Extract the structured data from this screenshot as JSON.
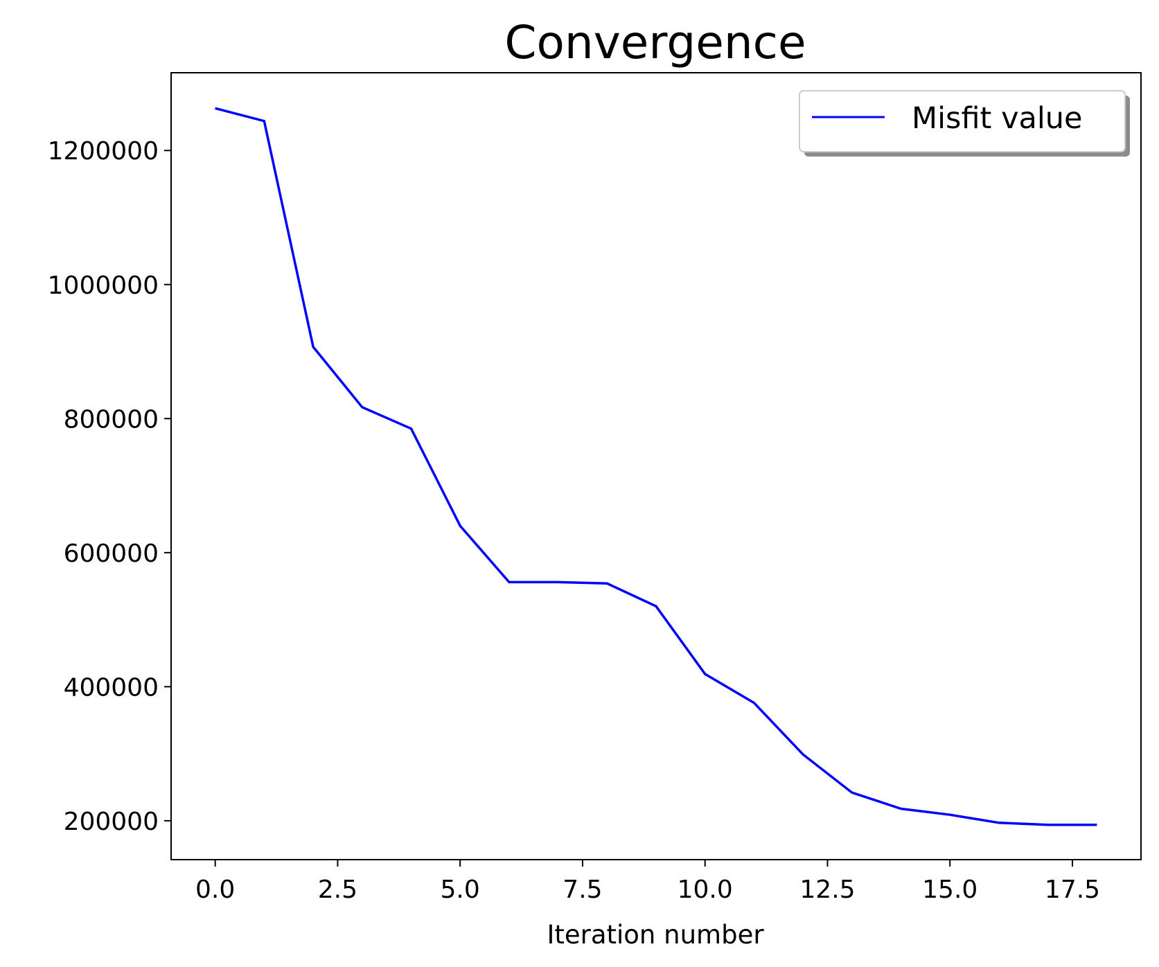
{
  "chart_data": {
    "type": "line",
    "title": "Convergence",
    "xlabel": "Iteration number",
    "ylabel": "",
    "x": [
      0,
      1,
      2,
      3,
      4,
      5,
      6,
      7,
      8,
      9,
      10,
      11,
      12,
      13,
      14,
      15,
      16,
      17,
      18
    ],
    "series": [
      {
        "name": "Misfit value",
        "color": "#0000ff",
        "values": [
          1263000,
          1244000,
          907000,
          817000,
          785000,
          640000,
          556000,
          556000,
          554000,
          520000,
          419000,
          376000,
          299000,
          242000,
          218000,
          209000,
          197000,
          194000,
          194000
        ]
      }
    ],
    "xlim": [
      -0.9,
      18.9
    ],
    "ylim": [
      142000,
      1316000
    ],
    "xticks": [
      0,
      2.5,
      5,
      7.5,
      10,
      12.5,
      15,
      17.5
    ],
    "xtick_labels": [
      "0.0",
      "2.5",
      "5.0",
      "7.5",
      "10.0",
      "12.5",
      "15.0",
      "17.5"
    ],
    "yticks": [
      200000,
      400000,
      600000,
      800000,
      1000000,
      1200000
    ],
    "ytick_labels": [
      "200000",
      "400000",
      "600000",
      "800000",
      "1000000",
      "1200000"
    ],
    "grid": false,
    "legend_position": "top-right"
  }
}
